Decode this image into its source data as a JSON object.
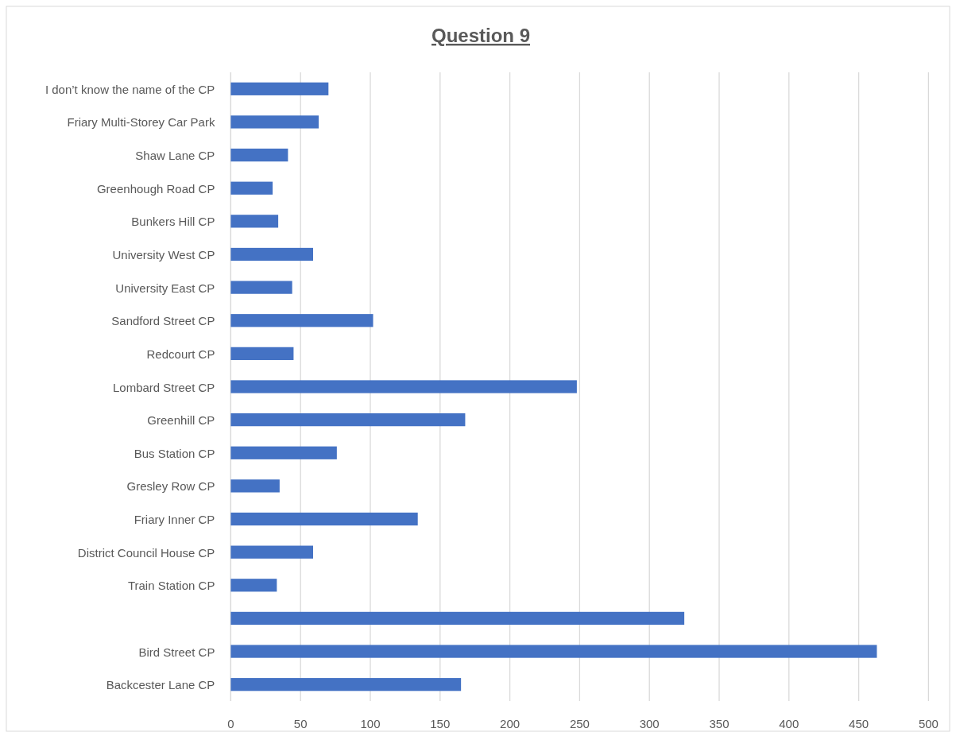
{
  "chart_data": {
    "type": "bar",
    "orientation": "horizontal",
    "title": "Question 9",
    "categories": [
      "I don’t know the name of the CP",
      "Friary Multi-Storey Car Park",
      "Shaw Lane CP",
      "Greenhough Road CP",
      "Bunkers Hill CP",
      "University West CP",
      "University East CP",
      "Sandford Street CP",
      "Redcourt CP",
      "Lombard Street CP",
      "Greenhill CP",
      "Bus Station CP",
      "Gresley Row CP",
      "Friary Inner CP",
      "District Council House CP",
      "Train Station CP",
      null,
      "Bird Street CP",
      "Backcester Lane CP"
    ],
    "values": [
      70,
      63,
      41,
      30,
      34,
      59,
      44,
      102,
      45,
      248,
      168,
      76,
      35,
      134,
      59,
      33,
      325,
      463,
      165
    ],
    "color": "#4472c4",
    "xlim": [
      0,
      500
    ],
    "xticks": [
      0,
      50,
      100,
      150,
      200,
      250,
      300,
      350,
      400,
      450,
      500
    ],
    "grid": "x"
  }
}
